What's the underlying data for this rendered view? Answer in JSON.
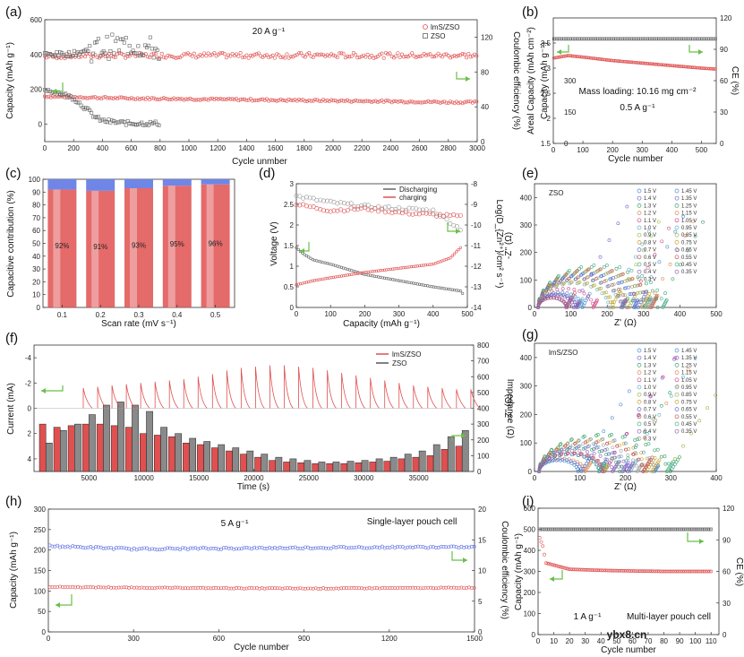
{
  "watermark": "ybx8.cn",
  "colors": {
    "red": "#e05050",
    "red_light": "#f2a0a0",
    "gray": "#666666",
    "gray_light": "#9a9a9a",
    "blue": "#5a6fe0",
    "green": "#6abf4b",
    "bar_blue": "#6f86e6"
  },
  "chart_data": [
    {
      "id": "a",
      "label": "(a)",
      "type": "scatter",
      "annotation": "20 A g⁻¹",
      "xlabel": "Cycle unmber",
      "ylabel": "Capacity (mAh g⁻¹)",
      "y2label": "Coulombic efficiency (%)",
      "xlim": [
        0,
        3000
      ],
      "ylim": [
        -100,
        600
      ],
      "y2lim": [
        0,
        140
      ],
      "xticks": [
        0,
        200,
        400,
        600,
        800,
        1000,
        1200,
        1400,
        1600,
        1800,
        2000,
        2200,
        2400,
        2600,
        2800,
        3000
      ],
      "yticks": [
        0,
        200,
        400,
        600
      ],
      "y2ticks": [
        0,
        40,
        80,
        120
      ],
      "legend": [
        "lmS/ZSO",
        "ZSO"
      ],
      "legend_position": "top-right",
      "series": [
        {
          "name": "lmS/ZSO",
          "metric": "capacity",
          "x": [
            0,
            500,
            1000,
            1500,
            2000,
            2500,
            3000
          ],
          "y": [
            160,
            150,
            145,
            140,
            135,
            130,
            125
          ]
        },
        {
          "name": "lmS/ZSO",
          "metric": "CE",
          "x": [
            0,
            500,
            1000,
            1500,
            2000,
            2500,
            3000
          ],
          "y": [
            98,
            99,
            99,
            99,
            99,
            99,
            99
          ]
        },
        {
          "name": "ZSO",
          "metric": "capacity",
          "x": [
            0,
            100,
            200,
            300,
            350,
            400,
            500,
            600,
            700,
            800
          ],
          "y": [
            200,
            180,
            150,
            80,
            40,
            20,
            10,
            5,
            5,
            5
          ]
        },
        {
          "name": "ZSO",
          "metric": "CE",
          "x": [
            0,
            100,
            200,
            300,
            400,
            500,
            600,
            700,
            800
          ],
          "y": [
            100,
            100,
            101,
            105,
            108,
            110,
            112,
            108,
            105
          ]
        }
      ]
    },
    {
      "id": "b",
      "label": "(b)",
      "type": "scatter",
      "annotations": [
        "Mass loading: 10.16 mg cm⁻²",
        "0.5 A g⁻¹"
      ],
      "xlabel": "Cycle number",
      "ylabel": "Areal Capacity (mAh cm⁻²)",
      "y2label": "CE (%)",
      "xlim": [
        0,
        550
      ],
      "ylim": [
        1.5,
        4.0
      ],
      "y2lim": [
        0,
        120
      ],
      "xticks": [
        0,
        100,
        200,
        300,
        400,
        500
      ],
      "yticks": [
        1.5,
        2.0,
        2.5,
        3.0,
        3.5
      ],
      "y2ticks": [
        0,
        30,
        60,
        90,
        120
      ],
      "y2alt": {
        "label": "Capacity (mAh g⁻¹)",
        "ticks": [
          0,
          150,
          300
        ]
      },
      "series": [
        {
          "name": "capacity",
          "x": [
            0,
            50,
            100,
            200,
            300,
            400,
            500,
            550
          ],
          "y": [
            3.2,
            3.25,
            3.22,
            3.15,
            3.1,
            3.05,
            3.0,
            2.98
          ]
        },
        {
          "name": "CE",
          "x": [
            0,
            100,
            200,
            300,
            400,
            500,
            550
          ],
          "y": [
            100,
            100,
            100,
            100,
            100,
            100,
            100
          ]
        }
      ]
    },
    {
      "id": "c",
      "label": "(c)",
      "type": "bar",
      "xlabel": "Scan rate (mV s⁻¹)",
      "ylabel": "Capacitive contribution (%)",
      "categories": [
        "0.1",
        "0.2",
        "0.3",
        "0.4",
        "0.5"
      ],
      "values": [
        92,
        91,
        93,
        95,
        96
      ],
      "data_labels": [
        "92%",
        "91%",
        "93%",
        "95%",
        "96%"
      ],
      "ylim": [
        0,
        100
      ],
      "yticks": [
        0,
        10,
        20,
        30,
        40,
        50,
        60,
        70,
        80,
        90,
        100
      ]
    },
    {
      "id": "d",
      "label": "(d)",
      "type": "line",
      "xlabel": "Capacity (mAh g⁻¹)",
      "ylabel": "Voltage (V)",
      "y2label": "Log(D_{Zn²⁺}/cm² s⁻¹)",
      "xlim": [
        0,
        500
      ],
      "ylim": [
        0,
        3.0
      ],
      "y2lim": [
        -14,
        -8
      ],
      "xticks": [
        0,
        100,
        200,
        300,
        400,
        500
      ],
      "yticks": [
        0.0,
        0.5,
        1.0,
        1.5,
        2.0,
        2.5,
        3.0
      ],
      "y2ticks": [
        -14,
        -13,
        -12,
        -11,
        -10,
        -9,
        -8
      ],
      "legend": [
        "Discharging",
        "charging"
      ],
      "series": [
        {
          "name": "Discharging",
          "metric": "voltage",
          "x": [
            0,
            20,
            50,
            100,
            200,
            300,
            400,
            480,
            490
          ],
          "y": [
            1.45,
            1.3,
            1.15,
            1.05,
            0.8,
            0.65,
            0.5,
            0.4,
            0.3
          ]
        },
        {
          "name": "charging",
          "metric": "voltage",
          "x": [
            0,
            50,
            100,
            200,
            300,
            400,
            450,
            480
          ],
          "y": [
            0.55,
            0.65,
            0.72,
            0.85,
            0.95,
            1.05,
            1.2,
            1.45
          ]
        },
        {
          "name": "Discharging",
          "metric": "logD",
          "x": [
            0,
            100,
            200,
            300,
            400,
            480
          ],
          "y": [
            -8.6,
            -8.9,
            -9.1,
            -9.2,
            -9.3,
            -10.2
          ]
        },
        {
          "name": "charging",
          "metric": "logD",
          "x": [
            0,
            100,
            200,
            300,
            400,
            480
          ],
          "y": [
            -9.0,
            -9.3,
            -9.2,
            -9.4,
            -9.5,
            -9.6
          ]
        }
      ]
    },
    {
      "id": "e",
      "label": "(e)",
      "type": "scatter",
      "annotation": "ZSO",
      "xlabel": "Z' (Ω)",
      "ylabel": "-Z'' (Ω)",
      "xlim": [
        0,
        500
      ],
      "ylim": [
        0,
        450
      ],
      "xticks": [
        0,
        100,
        200,
        300,
        400,
        500
      ],
      "yticks": [
        0,
        100,
        200,
        300,
        400
      ],
      "legend": [
        "1.5 V",
        "1.4 V",
        "1.3 V",
        "1.2 V",
        "1.1 V",
        "1.0 V",
        "0.9 V",
        "0.8 V",
        "0.7 V",
        "0.6 V",
        "0.5 V",
        "0.4 V",
        "0.3 V",
        "1.45 V",
        "1.35 V",
        "1.25 V",
        "1.15 V",
        "1.05 V",
        "0.95 V",
        "0.85 V",
        "0.75 V",
        "0.65 V",
        "0.55 V",
        "0.45 V",
        "0.35 V"
      ],
      "series_note": "semicircle arcs with diffusion tails"
    },
    {
      "id": "f",
      "label": "(f)",
      "type": "bar",
      "xlabel": "Time (s)",
      "ylabel": "Current (mA)",
      "y2label": "Impedance (Ω)",
      "xlim": [
        0,
        40000
      ],
      "ylim": [
        -5,
        5
      ],
      "y2lim": [
        0,
        800
      ],
      "xticks": [
        5000,
        10000,
        15000,
        20000,
        25000,
        30000,
        35000
      ],
      "yticks": [
        -4,
        -2,
        0,
        2,
        4
      ],
      "y2ticks": [
        0,
        100,
        200,
        300,
        400,
        500,
        600,
        700,
        800
      ],
      "legend": [
        "lmS/ZSO",
        "ZSO"
      ],
      "series": [
        {
          "name": "lmS/ZSO",
          "values": [
            300,
            280,
            290,
            300,
            300,
            290,
            280,
            240,
            230,
            220,
            180,
            170,
            150,
            130,
            110,
            90,
            70,
            60,
            55,
            50,
            50,
            50,
            55,
            60,
            65,
            80,
            90,
            100,
            140,
            160
          ]
        },
        {
          "name": "ZSO",
          "values": [
            180,
            260,
            300,
            360,
            420,
            440,
            420,
            380,
            280,
            240,
            210,
            190,
            170,
            150,
            130,
            110,
            90,
            80,
            70,
            60,
            60,
            65,
            70,
            80,
            90,
            110,
            130,
            170,
            220,
            260
          ]
        }
      ]
    },
    {
      "id": "g",
      "label": "(g)",
      "type": "scatter",
      "annotation": "lmS/ZSO",
      "xlabel": "Z' (Ω)",
      "ylabel": "-Z'' (Ω)",
      "xlim": [
        0,
        400
      ],
      "ylim": [
        0,
        450
      ],
      "xticks": [
        0,
        100,
        200,
        300,
        400
      ],
      "yticks": [
        0,
        100,
        200,
        300,
        400
      ],
      "legend": [
        "1.5 V",
        "1.4 V",
        "1.3 V",
        "1.2 V",
        "1.1 V",
        "1.0 V",
        "0.9 V",
        "0.8 V",
        "0.7 V",
        "0.6 V",
        "0.5 V",
        "0.4 V",
        "0.3 V",
        "1.45 V",
        "1.35 V",
        "1.25 V",
        "1.15 V",
        "1.05 V",
        "0.95 V",
        "0.85 V",
        "0.75 V",
        "0.65 V",
        "0.55 V",
        "0.45 V",
        "0.35 V"
      ]
    },
    {
      "id": "h",
      "label": "(h)",
      "type": "scatter",
      "annotations": [
        "5 A g⁻¹",
        "Single-layer pouch cell"
      ],
      "xlabel": "Cycle number",
      "ylabel": "Capacity (mAh g⁻¹)",
      "y2label": "Coulombic efficiency (%)",
      "xlim": [
        0,
        1500
      ],
      "ylim": [
        0,
        300
      ],
      "y2lim": [
        0,
        20
      ],
      "xticks": [
        0,
        300,
        600,
        900,
        1200,
        1500
      ],
      "yticks": [
        0,
        50,
        100,
        150,
        200,
        250,
        300
      ],
      "y2ticks": [
        0,
        5,
        10,
        15,
        20
      ],
      "series": [
        {
          "name": "capacity",
          "x": [
            0,
            300,
            600,
            900,
            1200,
            1500
          ],
          "y": [
            110,
            108,
            107,
            106,
            107,
            108
          ]
        },
        {
          "name": "CE",
          "x": [
            0,
            300,
            600,
            900,
            1200,
            1500
          ],
          "y": [
            14,
            13.5,
            13.6,
            13.7,
            13.8,
            13.8
          ]
        }
      ]
    },
    {
      "id": "i",
      "label": "(i)",
      "type": "scatter",
      "annotations": [
        "1 A g⁻¹",
        "Multi-layer pouch cell"
      ],
      "xlabel": "Cycle number",
      "ylabel": "Capacity (mAh g⁻¹)",
      "y2label": "CE (%)",
      "xlim": [
        0,
        115
      ],
      "ylim": [
        0,
        600
      ],
      "y2lim": [
        0,
        120
      ],
      "xticks": [
        0,
        10,
        20,
        30,
        40,
        50,
        60,
        70,
        80,
        90,
        100,
        110
      ],
      "yticks": [
        0,
        100,
        200,
        300,
        400,
        500,
        600
      ],
      "y2ticks": [
        0,
        30,
        60,
        90,
        120
      ],
      "series": [
        {
          "name": "capacity",
          "x": [
            1,
            3,
            5,
            10,
            15,
            20,
            40,
            60,
            80,
            100,
            110
          ],
          "y": [
            460,
            420,
            340,
            330,
            320,
            310,
            305,
            302,
            300,
            300,
            300
          ]
        },
        {
          "name": "CE",
          "x": [
            1,
            10,
            20,
            40,
            60,
            80,
            100,
            110
          ],
          "y": [
            100,
            100,
            100,
            100,
            100,
            100,
            100,
            100
          ]
        }
      ]
    }
  ]
}
